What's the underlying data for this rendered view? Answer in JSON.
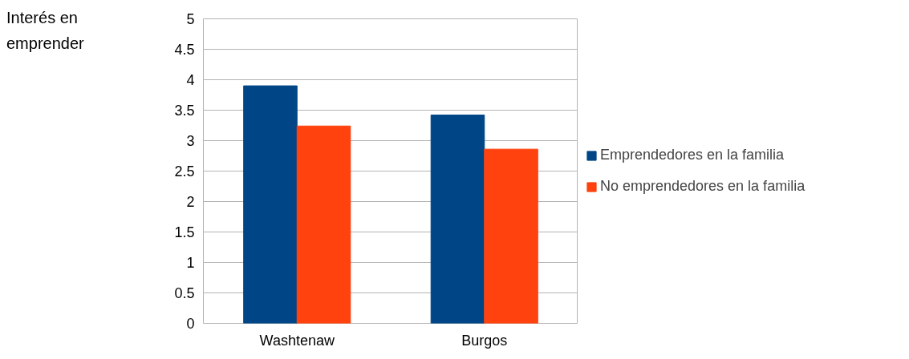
{
  "chart_data": {
    "type": "bar",
    "annotations": [
      "Interés en\nemprender"
    ],
    "categories": [
      "Washtenaw",
      "Burgos"
    ],
    "series": [
      {
        "name": "Emprendedores en la familia",
        "color": "#004586",
        "values": [
          3.9,
          3.42
        ]
      },
      {
        "name": "No emprendedores en la familia",
        "color": "#ff420e",
        "values": [
          3.24,
          2.86
        ]
      }
    ],
    "ylim": [
      0,
      5
    ],
    "yticks": [
      0,
      0.5,
      1,
      1.5,
      2,
      2.5,
      3,
      3.5,
      4,
      4.5,
      5
    ],
    "grid": "y",
    "legend": "right"
  }
}
